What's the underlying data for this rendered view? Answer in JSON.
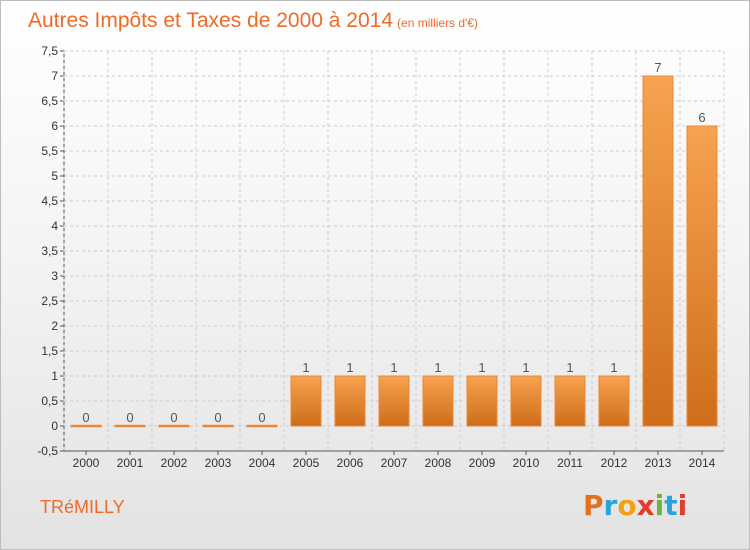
{
  "header": {
    "title": "Autres Impôts et Taxes de 2000 à 2014",
    "subtitle": "(en milliers d'€)"
  },
  "footer": {
    "commune": "TRéMILLY",
    "logo": {
      "letters": [
        "P",
        "r",
        "o",
        "x",
        "i",
        "t",
        "i"
      ],
      "colors": [
        "#e3701b",
        "#2aa3d9",
        "#f2a20f",
        "#e23c2a",
        "#6cb33f",
        "#2aa3d9",
        "#e23c2a"
      ]
    }
  },
  "colors": {
    "bar_top": "#f7a34f",
    "bar_bottom": "#cf6d1a",
    "grid": "#cccccc",
    "axis": "#555555",
    "title": "#ee6a26"
  },
  "chart_data": {
    "type": "bar",
    "title": "Autres Impôts et Taxes de 2000 à 2014",
    "subtitle": "(en milliers d'€)",
    "categories": [
      "2000",
      "2001",
      "2002",
      "2003",
      "2004",
      "2005",
      "2006",
      "2007",
      "2008",
      "2009",
      "2010",
      "2011",
      "2012",
      "2013",
      "2014"
    ],
    "values": [
      0,
      0,
      0,
      0,
      0,
      1,
      1,
      1,
      1,
      1,
      1,
      1,
      1,
      7,
      6
    ],
    "data_labels": [
      "0",
      "0",
      "0",
      "0",
      "0",
      "1",
      "1",
      "1",
      "1",
      "1",
      "1",
      "1",
      "1",
      "7",
      "6"
    ],
    "y_ticks": [
      -0.5,
      0,
      0.5,
      1,
      1.5,
      2,
      2.5,
      3,
      3.5,
      4,
      4.5,
      5,
      5.5,
      6,
      6.5,
      7,
      7.5
    ],
    "y_tick_labels": [
      "-0,5",
      "0",
      "0,5",
      "1",
      "1,5",
      "2",
      "2,5",
      "3",
      "3,5",
      "4",
      "4,5",
      "5",
      "5,5",
      "6",
      "6,5",
      "7",
      "7,5"
    ],
    "ylim": [
      -0.5,
      7.5
    ],
    "xlabel": "",
    "ylabel": "",
    "grid": true,
    "legend": "none"
  }
}
